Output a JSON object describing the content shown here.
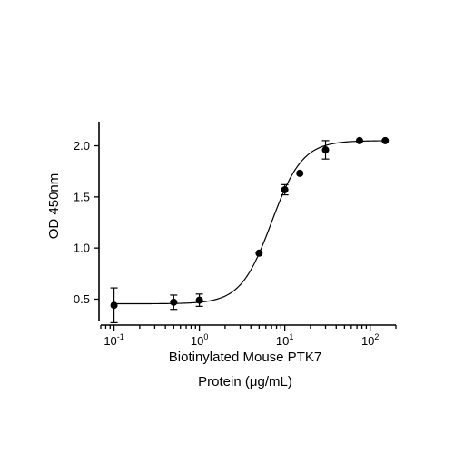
{
  "chart_data": {
    "type": "scatter",
    "xlabel_lines": [
      "Biotinylated Mouse PTK7",
      "Protein (μg/mL)"
    ],
    "ylabel": "OD 450nm",
    "x_scale": "log",
    "xlim": [
      0.07,
      200
    ],
    "ylim": [
      0.3,
      2.2
    ],
    "x_ticks": [
      {
        "value": 0.1,
        "base": "10",
        "exp": "-1"
      },
      {
        "value": 1,
        "base": "10",
        "exp": "0"
      },
      {
        "value": 10,
        "base": "10",
        "exp": "1"
      },
      {
        "value": 100,
        "base": "10",
        "exp": "2"
      }
    ],
    "y_ticks": [
      {
        "value": 0.5,
        "label": "0.5"
      },
      {
        "value": 1.0,
        "label": "1.0"
      },
      {
        "value": 1.5,
        "label": "1.5"
      },
      {
        "value": 2.0,
        "label": "2.0"
      }
    ],
    "points": [
      {
        "x": 0.1,
        "y": 0.44,
        "err": 0.17
      },
      {
        "x": 0.5,
        "y": 0.47,
        "err": 0.07
      },
      {
        "x": 1,
        "y": 0.49,
        "err": 0.06
      },
      {
        "x": 5,
        "y": 0.95,
        "err": 0
      },
      {
        "x": 10,
        "y": 1.57,
        "err": 0.05
      },
      {
        "x": 15,
        "y": 1.73,
        "err": 0
      },
      {
        "x": 30,
        "y": 1.96,
        "err": 0.09
      },
      {
        "x": 75,
        "y": 2.05,
        "err": 0
      },
      {
        "x": 150,
        "y": 2.05,
        "err": 0
      }
    ],
    "fit": {
      "bottom": 0.455,
      "top": 2.05,
      "ec50": 7.0,
      "hill": 2.4
    },
    "grid": false,
    "legend": "none"
  }
}
